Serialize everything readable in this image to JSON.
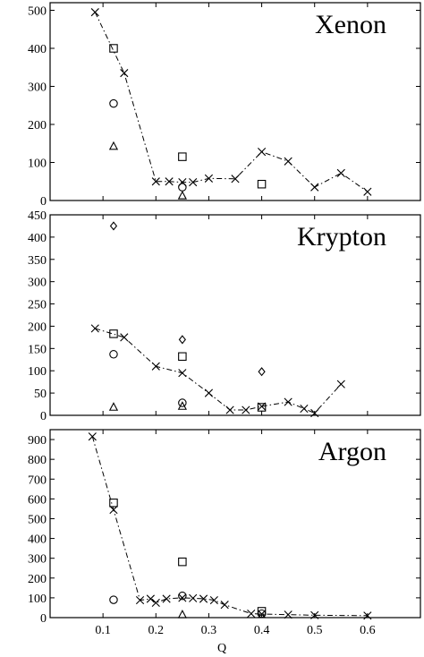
{
  "chart_data": [
    {
      "type": "scatter",
      "title": "Xenon",
      "xlabel": "",
      "ylabel": "",
      "xlim": [
        0,
        0.7
      ],
      "ylim": [
        0,
        520
      ],
      "yticks": [
        0,
        100,
        200,
        300,
        400,
        500
      ],
      "grid": false,
      "series": [
        {
          "marker": "cross",
          "connected": true,
          "x": [
            0.085,
            0.14,
            0.2,
            0.225,
            0.25,
            0.27,
            0.3,
            0.35,
            0.4,
            0.45,
            0.5,
            0.55,
            0.6
          ],
          "y": [
            495,
            335,
            50,
            50,
            48,
            48,
            58,
            57,
            128,
            103,
            35,
            72,
            23
          ]
        },
        {
          "marker": "square",
          "x": [
            0.12,
            0.25,
            0.4
          ],
          "y": [
            400,
            115,
            43
          ]
        },
        {
          "marker": "circle",
          "x": [
            0.12,
            0.25
          ],
          "y": [
            255,
            35
          ]
        },
        {
          "marker": "triangle",
          "x": [
            0.12,
            0.25
          ],
          "y": [
            142,
            12
          ]
        }
      ]
    },
    {
      "type": "scatter",
      "title": "Krypton",
      "xlabel": "",
      "ylabel": "",
      "xlim": [
        0,
        0.7
      ],
      "ylim": [
        0,
        450
      ],
      "yticks": [
        0,
        50,
        100,
        150,
        200,
        250,
        300,
        350,
        400,
        450
      ],
      "grid": false,
      "series": [
        {
          "marker": "cross",
          "connected": true,
          "x": [
            0.085,
            0.14,
            0.2,
            0.25,
            0.3,
            0.34,
            0.37,
            0.4,
            0.45,
            0.48,
            0.5,
            0.55
          ],
          "y": [
            195,
            175,
            110,
            95,
            50,
            12,
            12,
            20,
            30,
            15,
            5,
            70
          ]
        },
        {
          "marker": "diamond",
          "x": [
            0.12,
            0.25,
            0.4
          ],
          "y": [
            425,
            170,
            98
          ]
        },
        {
          "marker": "square",
          "x": [
            0.12,
            0.25,
            0.4
          ],
          "y": [
            183,
            132,
            18
          ]
        },
        {
          "marker": "circle",
          "x": [
            0.12,
            0.25
          ],
          "y": [
            137,
            28
          ]
        },
        {
          "marker": "triangle",
          "x": [
            0.12,
            0.25
          ],
          "y": [
            18,
            20
          ]
        }
      ]
    },
    {
      "type": "scatter",
      "title": "Argon",
      "xlabel": "Q",
      "ylabel": "",
      "xlim": [
        0,
        0.7
      ],
      "ylim": [
        0,
        950
      ],
      "yticks": [
        0,
        100,
        200,
        300,
        400,
        500,
        600,
        700,
        800,
        900
      ],
      "xticks": [
        0.1,
        0.2,
        0.3,
        0.4,
        0.5,
        0.6
      ],
      "grid": false,
      "series": [
        {
          "marker": "cross",
          "connected": true,
          "x": [
            0.08,
            0.12,
            0.17,
            0.19,
            0.2,
            0.22,
            0.25,
            0.27,
            0.29,
            0.31,
            0.33,
            0.38,
            0.4,
            0.45,
            0.5,
            0.6
          ],
          "y": [
            915,
            545,
            88,
            95,
            75,
            95,
            100,
            98,
            95,
            88,
            65,
            20,
            18,
            15,
            12,
            10
          ]
        },
        {
          "marker": "square",
          "x": [
            0.12,
            0.25,
            0.4
          ],
          "y": [
            580,
            282,
            32
          ]
        },
        {
          "marker": "circle",
          "x": [
            0.12,
            0.25,
            0.4
          ],
          "y": [
            90,
            110,
            20
          ]
        },
        {
          "marker": "triangle",
          "x": [
            0.25
          ],
          "y": [
            14
          ]
        }
      ]
    }
  ]
}
